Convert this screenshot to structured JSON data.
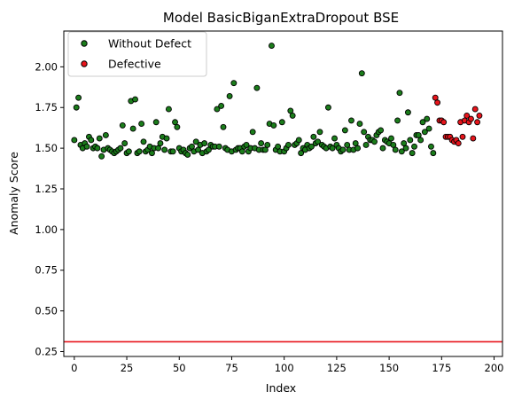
{
  "chart_data": {
    "type": "scatter",
    "title": "Model BasicBiganExtraDropout BSE",
    "xlabel": "Index",
    "ylabel": "Anomaly Score",
    "xlim": [
      -5,
      204
    ],
    "ylim": [
      0.22,
      2.22
    ],
    "xticks": [
      0,
      25,
      50,
      75,
      100,
      125,
      150,
      175,
      200
    ],
    "yticks": [
      0.25,
      0.5,
      0.75,
      1.0,
      1.25,
      1.5,
      1.75,
      2.0
    ],
    "ytick_labels": [
      "0.25",
      "0.50",
      "0.75",
      "1.00",
      "1.25",
      "1.50",
      "1.75",
      "2.00"
    ],
    "grid": false,
    "legend_position": "upper-left",
    "threshold": {
      "y": 0.31,
      "color": "#e8141b"
    },
    "series": [
      {
        "name": "Without Defect",
        "color": "#1b7d1b",
        "x": [
          0,
          1,
          2,
          3,
          4,
          5,
          6,
          7,
          8,
          9,
          10,
          11,
          12,
          13,
          14,
          15,
          16,
          17,
          18,
          19,
          20,
          21,
          22,
          23,
          24,
          25,
          26,
          27,
          28,
          29,
          30,
          31,
          32,
          33,
          34,
          35,
          36,
          37,
          38,
          39,
          40,
          41,
          42,
          43,
          44,
          45,
          46,
          47,
          48,
          49,
          50,
          51,
          52,
          53,
          54,
          55,
          56,
          57,
          58,
          59,
          60,
          61,
          62,
          63,
          64,
          65,
          66,
          67,
          68,
          69,
          70,
          71,
          72,
          73,
          74,
          75,
          76,
          77,
          78,
          79,
          80,
          81,
          82,
          83,
          84,
          85,
          86,
          87,
          88,
          89,
          90,
          91,
          92,
          93,
          94,
          95,
          96,
          97,
          98,
          99,
          100,
          101,
          102,
          103,
          104,
          105,
          106,
          107,
          108,
          109,
          110,
          111,
          112,
          113,
          114,
          115,
          116,
          117,
          118,
          119,
          120,
          121,
          122,
          123,
          124,
          125,
          126,
          127,
          128,
          129,
          130,
          131,
          132,
          133,
          134,
          135,
          136,
          137,
          138,
          139,
          140,
          141,
          142,
          143,
          144,
          145,
          146,
          147,
          148,
          149,
          150,
          151,
          152,
          153,
          154,
          155,
          156,
          157,
          158,
          159,
          160,
          161,
          162,
          163,
          164,
          165,
          166,
          167,
          168,
          169,
          170,
          171
        ],
        "y": [
          1.55,
          1.75,
          1.81,
          1.52,
          1.5,
          1.53,
          1.51,
          1.57,
          1.55,
          1.5,
          1.51,
          1.5,
          1.56,
          1.45,
          1.49,
          1.58,
          1.5,
          1.49,
          1.48,
          1.47,
          1.48,
          1.49,
          1.5,
          1.64,
          1.53,
          1.47,
          1.48,
          1.79,
          1.62,
          1.8,
          1.47,
          1.48,
          1.65,
          1.54,
          1.48,
          1.49,
          1.51,
          1.47,
          1.5,
          1.66,
          1.5,
          1.53,
          1.57,
          1.49,
          1.56,
          1.74,
          1.48,
          1.48,
          1.66,
          1.63,
          1.5,
          1.48,
          1.49,
          1.47,
          1.46,
          1.5,
          1.51,
          1.48,
          1.54,
          1.49,
          1.52,
          1.47,
          1.53,
          1.48,
          1.49,
          1.52,
          1.51,
          1.51,
          1.74,
          1.51,
          1.76,
          1.63,
          1.5,
          1.49,
          1.82,
          1.48,
          1.9,
          1.49,
          1.5,
          1.5,
          1.48,
          1.51,
          1.52,
          1.48,
          1.5,
          1.6,
          1.5,
          1.87,
          1.49,
          1.53,
          1.49,
          1.49,
          1.52,
          1.65,
          2.13,
          1.64,
          1.49,
          1.51,
          1.48,
          1.66,
          1.48,
          1.5,
          1.52,
          1.73,
          1.7,
          1.52,
          1.53,
          1.55,
          1.47,
          1.5,
          1.49,
          1.52,
          1.5,
          1.51,
          1.57,
          1.53,
          1.54,
          1.6,
          1.52,
          1.51,
          1.5,
          1.75,
          1.51,
          1.5,
          1.56,
          1.52,
          1.5,
          1.48,
          1.49,
          1.61,
          1.52,
          1.49,
          1.67,
          1.49,
          1.53,
          1.5,
          1.65,
          1.96,
          1.6,
          1.52,
          1.57,
          1.55,
          1.55,
          1.54,
          1.58,
          1.6,
          1.61,
          1.5,
          1.55,
          1.54,
          1.53,
          1.56,
          1.52,
          1.49,
          1.67,
          1.84,
          1.48,
          1.53,
          1.5,
          1.72,
          1.55,
          1.47,
          1.51,
          1.58,
          1.58,
          1.55,
          1.66,
          1.6,
          1.68,
          1.62,
          1.51,
          1.47
        ]
      },
      {
        "name": "Defective",
        "color": "#e8141b",
        "x": [
          172,
          173,
          174,
          175,
          176,
          177,
          178,
          179,
          180,
          181,
          182,
          183,
          184,
          185,
          186,
          187,
          188,
          189,
          190,
          191,
          192,
          193
        ],
        "y": [
          1.81,
          1.78,
          1.67,
          1.67,
          1.66,
          1.57,
          1.57,
          1.57,
          1.55,
          1.54,
          1.55,
          1.53,
          1.66,
          1.57,
          1.67,
          1.7,
          1.66,
          1.68,
          1.56,
          1.74,
          1.66,
          1.7
        ]
      }
    ]
  }
}
